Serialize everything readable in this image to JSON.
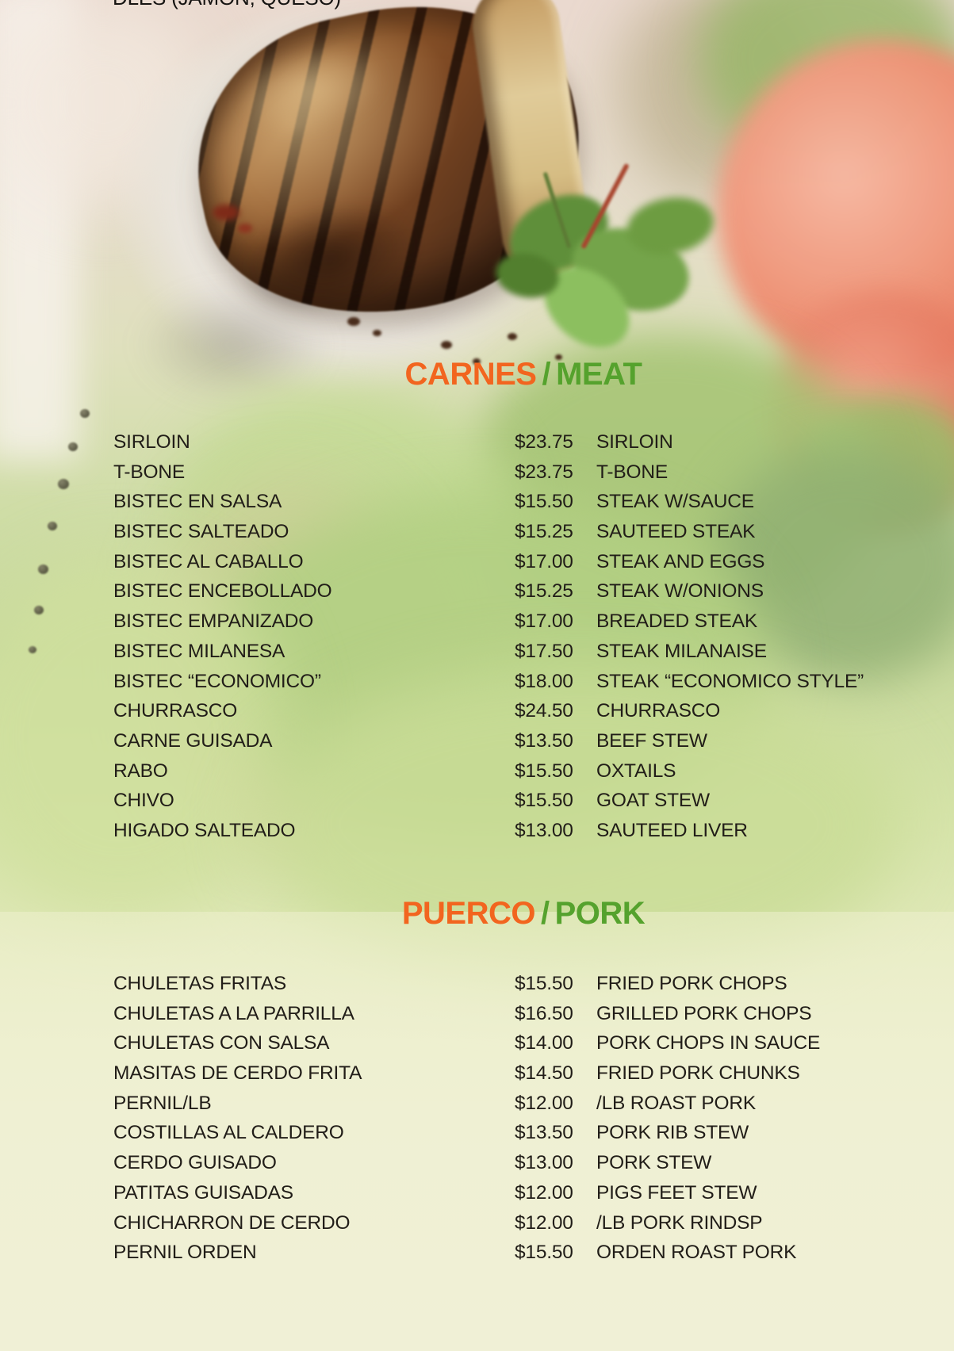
{
  "menu": {
    "clipped_top_text": "DLES (JAMON, QUESO)",
    "sections": [
      {
        "title_es": "CARNES",
        "divider": "/",
        "title_en": "MEAT",
        "items": [
          {
            "es": "SIRLOIN",
            "price": "$23.75",
            "en": "SIRLOIN"
          },
          {
            "es": "T-BONE",
            "price": "$23.75",
            "en": "T-BONE"
          },
          {
            "es": "BISTEC EN SALSA",
            "price": "$15.50",
            "en": "STEAK W/SAUCE"
          },
          {
            "es": "BISTEC SALTEADO",
            "price": "$15.25",
            "en": "SAUTEED STEAK"
          },
          {
            "es": "BISTEC AL CABALLO",
            "price": "$17.00",
            "en": "STEAK AND EGGS"
          },
          {
            "es": "BISTEC ENCEBOLLADO",
            "price": "$15.25",
            "en": "STEAK W/ONIONS"
          },
          {
            "es": "BISTEC EMPANIZADO",
            "price": "$17.00",
            "en": "BREADED STEAK"
          },
          {
            "es": "BISTEC MILANESA",
            "price": "$17.50",
            "en": "STEAK MILANAISE"
          },
          {
            "es": "BISTEC “ECONOMICO”",
            "price": "$18.00",
            "en": "STEAK “ECONOMICO STYLE”"
          },
          {
            "es": "CHURRASCO",
            "price": "$24.50",
            "en": "CHURRASCO"
          },
          {
            "es": "CARNE GUISADA",
            "price": "$13.50",
            "en": "BEEF STEW"
          },
          {
            "es": "RABO",
            "price": "$15.50",
            "en": "OXTAILS"
          },
          {
            "es": "CHIVO",
            "price": "$15.50",
            "en": "GOAT STEW"
          },
          {
            "es": "HIGADO SALTEADO",
            "price": "$13.00",
            "en": "SAUTEED LIVER"
          }
        ]
      },
      {
        "title_es": "PUERCO",
        "divider": "/",
        "title_en": "PORK",
        "items": [
          {
            "es": "CHULETAS FRITAS",
            "price": "$15.50",
            "en": "FRIED PORK CHOPS"
          },
          {
            "es": "CHULETAS A LA PARRILLA",
            "price": "$16.50",
            "en": "GRILLED PORK CHOPS"
          },
          {
            "es": "CHULETAS CON SALSA",
            "price": "$14.00",
            "en": "PORK CHOPS IN SAUCE"
          },
          {
            "es": "MASITAS DE CERDO FRITA",
            "price": "$14.50",
            "en": "FRIED PORK CHUNKS"
          },
          {
            "es": "PERNIL/LB",
            "price": "$12.00",
            "en": "/LB ROAST PORK"
          },
          {
            "es": "COSTILLAS AL CALDERO",
            "price": "$13.50",
            "en": "PORK RIB STEW"
          },
          {
            "es": "CERDO GUISADO",
            "price": "$13.00",
            "en": "PORK STEW"
          },
          {
            "es": "PATITAS GUISADAS",
            "price": "$12.00",
            "en": "PIGS FEET STEW"
          },
          {
            "es": "CHICHARRON DE CERDO",
            "price": "$12.00",
            "en": "/LB PORK RINDSP"
          },
          {
            "es": "PERNIL ORDEN",
            "price": "$15.50",
            "en": "ORDEN ROAST PORK"
          }
        ]
      }
    ]
  },
  "colors": {
    "orange": "#F2651F",
    "green": "#55A22D",
    "text": "#211d18"
  },
  "background": {
    "photo_elements": [
      "grilled-steak",
      "white-plate",
      "herb-garnish",
      "tomato",
      "lettuce-leaves",
      "peppercorn-trail"
    ]
  }
}
